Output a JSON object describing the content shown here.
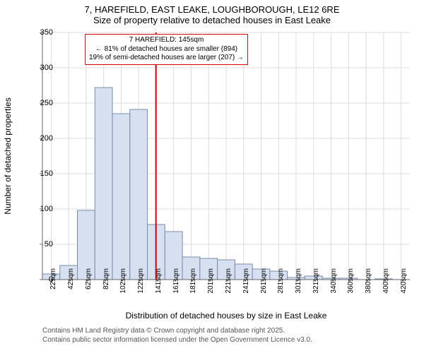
{
  "header": {
    "line1": "7, HAREFIELD, EAST LEAKE, LOUGHBOROUGH, LE12 6RE",
    "line2": "Size of property relative to detached houses in East Leake"
  },
  "histogram": {
    "type": "histogram",
    "x_categories": [
      "22sqm",
      "42sqm",
      "62sqm",
      "82sqm",
      "102sqm",
      "122sqm",
      "141sqm",
      "161sqm",
      "181sqm",
      "201sqm",
      "221sqm",
      "241sqm",
      "261sqm",
      "281sqm",
      "301sqm",
      "321sqm",
      "340sqm",
      "360sqm",
      "380sqm",
      "400sqm",
      "420sqm"
    ],
    "values": [
      8,
      20,
      98,
      272,
      235,
      241,
      78,
      68,
      32,
      30,
      28,
      22,
      15,
      12,
      3,
      5,
      2,
      2,
      0,
      1,
      0
    ],
    "ylim": [
      0,
      350
    ],
    "ytick_step": 50,
    "bar_fill": "#d6e0f0",
    "bar_stroke": "#7a8ca8",
    "grid_color": "#dcdcdc",
    "axis_color": "#666666",
    "reference_line": {
      "x_value": 145,
      "x_min": 22,
      "x_max": 420,
      "color": "#d40000",
      "width": 2
    },
    "x_axis_label": "Distribution of detached houses by size in East Leake",
    "y_axis_label": "Number of detached properties",
    "tick_font_size": 10,
    "label_font_size": 12
  },
  "annotation": {
    "line1": "7 HAREFIELD: 145sqm",
    "line2": "← 81% of detached houses are smaller (894)",
    "line3": "19% of semi-detached houses are larger (207) →",
    "border_color": "#d40000"
  },
  "footer": {
    "line1": "Contains HM Land Registry data © Crown copyright and database right 2025.",
    "line2": "Contains public sector information licensed under the Open Government Licence v3.0.",
    "color": "#555555"
  }
}
